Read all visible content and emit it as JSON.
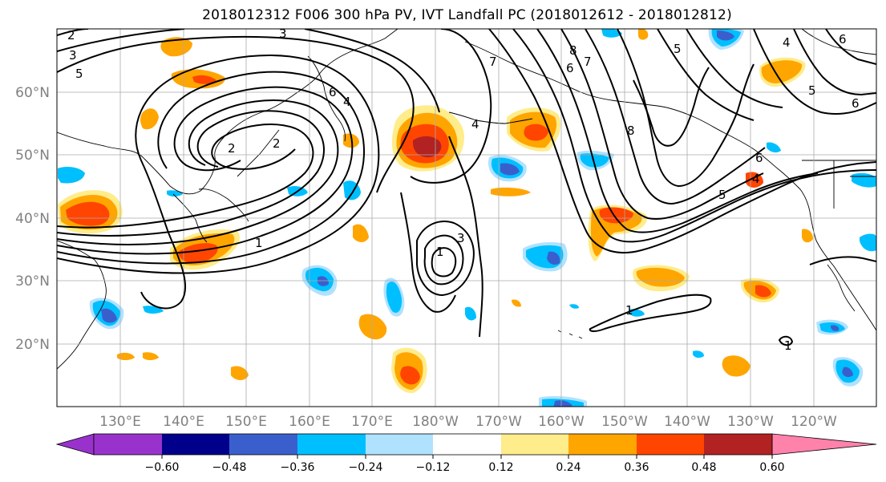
{
  "title": "2018012312 F006 300 hPa PV, IVT Landfall PC (2018012612 - 2018012812)",
  "lat_labels": [
    "60°N",
    "50°N",
    "40°N",
    "30°N",
    "20°N"
  ],
  "lon_labels": [
    "130°E",
    "140°E",
    "150°E",
    "160°E",
    "170°E",
    "180°W",
    "170°W",
    "160°W",
    "150°W",
    "140°W",
    "130°W",
    "120°W"
  ],
  "map": {
    "lat_range": [
      10,
      70
    ],
    "lon_range": [
      120,
      253
    ],
    "grid": true,
    "coastline_color": "#000000"
  },
  "colorbar": {
    "ticks": [
      "−0.60",
      "−0.48",
      "−0.36",
      "−0.24",
      "−0.12",
      "0.12",
      "0.24",
      "0.36",
      "0.48",
      "0.60"
    ],
    "colors": [
      "#9932CC",
      "#00008B",
      "#3A5FCD",
      "#00BFFF",
      "#B0E2FF",
      "#FFFFFF",
      "#FFEC8B",
      "#FFA500",
      "#FF4500",
      "#B22222",
      "#FF82AB"
    ],
    "extend": "both"
  },
  "contour_labels": [
    "2",
    "3",
    "5",
    "2",
    "3",
    "2",
    "6",
    "4",
    "1",
    "1",
    "3",
    "4",
    "7",
    "8",
    "7",
    "6",
    "8",
    "6",
    "5",
    "4",
    "6",
    "5",
    "4",
    "1",
    "1",
    "5",
    "6"
  ]
}
